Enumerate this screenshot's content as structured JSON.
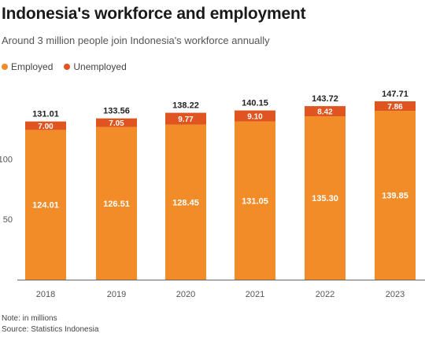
{
  "title": "Indonesia's workforce and employment",
  "subtitle": "Around 3 million people join Indonesia's workforce annually",
  "note": "Note: in millions",
  "source": "Source: Statistics Indonesia",
  "colors": {
    "employed": "#f28c28",
    "unemployed": "#e0541f",
    "axis": "#555555",
    "grid": "#e6e6e6"
  },
  "chart_data": {
    "type": "bar",
    "stacked": true,
    "categories": [
      "2018",
      "2019",
      "2020",
      "2021",
      "2022",
      "2023"
    ],
    "series": [
      {
        "name": "Employed",
        "values": [
          124.01,
          126.51,
          128.45,
          131.05,
          135.3,
          139.85
        ]
      },
      {
        "name": "Unemployed",
        "values": [
          7.0,
          7.05,
          9.77,
          9.1,
          8.42,
          7.86
        ]
      }
    ],
    "totals": [
      131.01,
      133.56,
      138.22,
      140.15,
      143.72,
      147.71
    ],
    "ylim": [
      0,
      160
    ],
    "yticks": [
      50,
      100
    ],
    "legend": "top-left",
    "grid": false
  }
}
